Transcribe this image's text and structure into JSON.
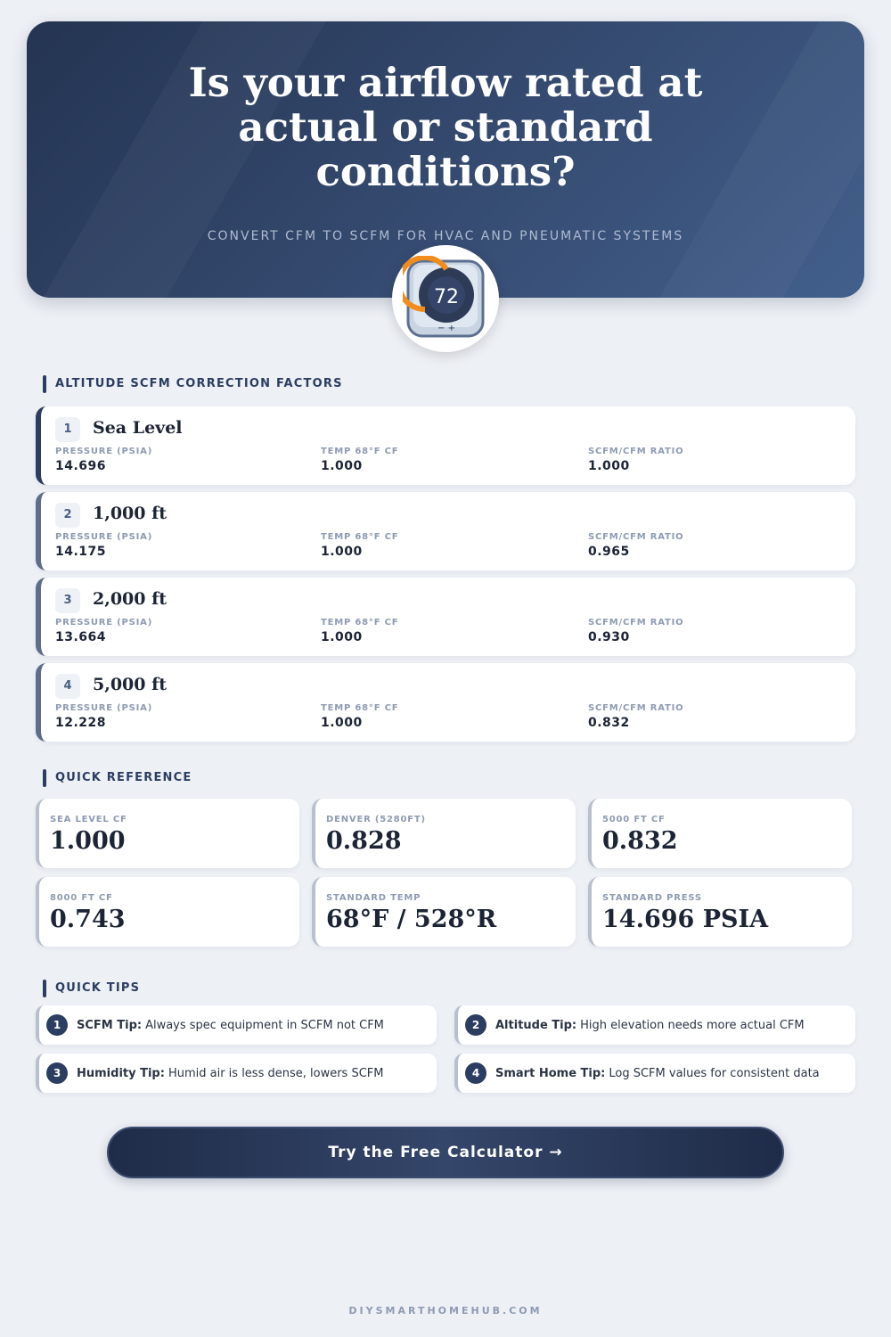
{
  "hero": {
    "title": "Is your airflow rated at actual or standard conditions?",
    "subtitle": "CONVERT CFM TO SCFM FOR HVAC AND PNEUMATIC SYSTEMS",
    "thermostat_reading": "72",
    "icon": "thermostat-icon",
    "accent": "#f28c1c"
  },
  "altitude": {
    "heading": "ALTITUDE SCFM CORRECTION FACTORS",
    "labels": [
      "PRESSURE (PSIA)",
      "TEMP 68°F CF",
      "SCFM/CFM RATIO"
    ],
    "rows": [
      {
        "num": "1",
        "title": "Sea Level",
        "pressure": "14.696",
        "temp_cf": "1.000",
        "ratio": "1.000"
      },
      {
        "num": "2",
        "title": "1,000 ft",
        "pressure": "14.175",
        "temp_cf": "1.000",
        "ratio": "0.965"
      },
      {
        "num": "3",
        "title": "2,000 ft",
        "pressure": "13.664",
        "temp_cf": "1.000",
        "ratio": "0.930"
      },
      {
        "num": "4",
        "title": "5,000 ft",
        "pressure": "12.228",
        "temp_cf": "1.000",
        "ratio": "0.832"
      }
    ]
  },
  "quick_reference": {
    "heading": "QUICK REFERENCE",
    "items": [
      {
        "label": "SEA LEVEL CF",
        "value": "1.000"
      },
      {
        "label": "DENVER (5280FT)",
        "value": "0.828"
      },
      {
        "label": "5000 FT CF",
        "value": "0.832"
      },
      {
        "label": "8000 FT CF",
        "value": "0.743"
      },
      {
        "label": "STANDARD TEMP",
        "value": "68°F / 528°R"
      },
      {
        "label": "STANDARD PRESS",
        "value": "14.696 PSIA"
      }
    ]
  },
  "tips": {
    "heading": "QUICK TIPS",
    "items": [
      {
        "num": "1",
        "title": "SCFM Tip:",
        "text": "Always spec equipment in SCFM not CFM"
      },
      {
        "num": "2",
        "title": "Altitude Tip:",
        "text": "High elevation needs more actual CFM"
      },
      {
        "num": "3",
        "title": "Humidity Tip:",
        "text": "Humid air is less dense, lowers SCFM"
      },
      {
        "num": "4",
        "title": "Smart Home Tip:",
        "text": "Log SCFM values for consistent data"
      }
    ]
  },
  "cta": {
    "label": "Try the Free Calculator →"
  },
  "footer": {
    "site": "DIYSMARTHOMEHUB.COM"
  }
}
